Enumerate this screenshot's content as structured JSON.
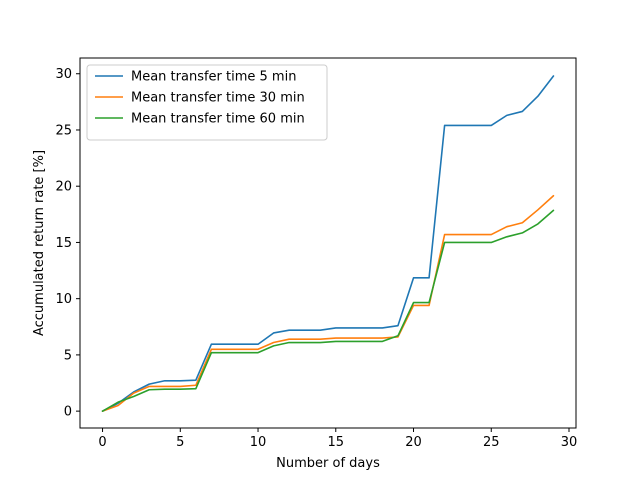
{
  "chart_data": {
    "type": "line",
    "title": "",
    "xlabel": "Number of days",
    "ylabel": "Accumulated return rate [%]",
    "xlim": [
      -1.45,
      30.45
    ],
    "ylim": [
      -1.5,
      31.4
    ],
    "xticks": [
      0,
      5,
      10,
      15,
      20,
      25,
      30
    ],
    "yticks": [
      0,
      5,
      10,
      15,
      20,
      25,
      30
    ],
    "grid": false,
    "legend_position": "upper-left",
    "x": [
      0,
      1,
      2,
      3,
      4,
      5,
      6,
      7,
      8,
      9,
      10,
      11,
      12,
      13,
      14,
      15,
      16,
      17,
      18,
      19,
      20,
      21,
      22,
      23,
      24,
      25,
      26,
      27,
      28,
      29
    ],
    "series": [
      {
        "name": "Mean transfer time 5 min",
        "color": "#1f77b4",
        "values": [
          0,
          0.7,
          1.7,
          2.4,
          2.7,
          2.7,
          2.75,
          5.95,
          5.95,
          5.95,
          5.95,
          6.95,
          7.2,
          7.2,
          7.2,
          7.4,
          7.4,
          7.4,
          7.4,
          7.6,
          11.85,
          11.85,
          25.4,
          25.4,
          25.4,
          25.4,
          26.3,
          26.65,
          28.0,
          29.8
        ]
      },
      {
        "name": "Mean transfer time 30 min",
        "color": "#ff7f0e",
        "values": [
          0,
          0.5,
          1.6,
          2.2,
          2.2,
          2.2,
          2.3,
          5.5,
          5.5,
          5.5,
          5.5,
          6.1,
          6.4,
          6.4,
          6.4,
          6.5,
          6.5,
          6.5,
          6.5,
          6.6,
          9.4,
          9.4,
          15.7,
          15.7,
          15.7,
          15.7,
          16.4,
          16.75,
          17.9,
          19.15
        ]
      },
      {
        "name": "Mean transfer time 60 min",
        "color": "#2ca02c",
        "values": [
          0,
          0.8,
          1.3,
          1.9,
          1.95,
          1.95,
          2.0,
          5.2,
          5.2,
          5.2,
          5.2,
          5.8,
          6.1,
          6.1,
          6.1,
          6.2,
          6.2,
          6.2,
          6.2,
          6.7,
          9.65,
          9.65,
          15.0,
          15.0,
          15.0,
          15.0,
          15.5,
          15.85,
          16.65,
          17.85
        ]
      }
    ]
  }
}
